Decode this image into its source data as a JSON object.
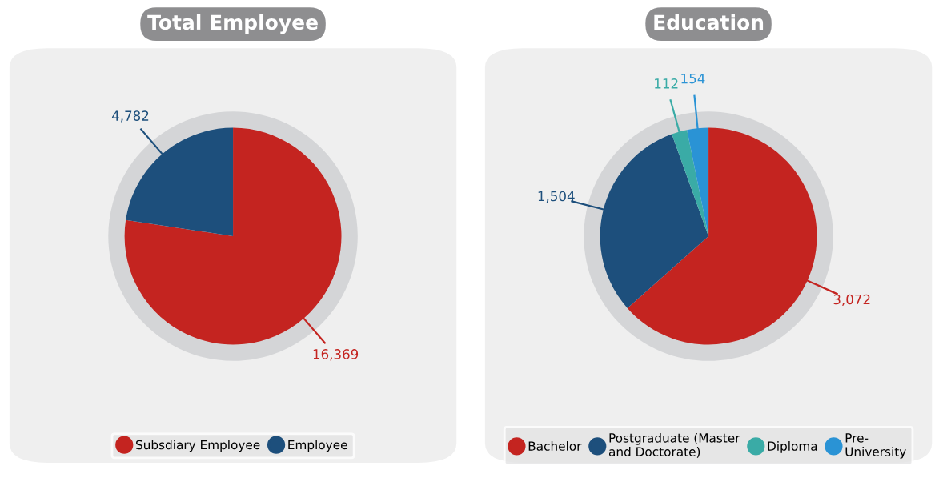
{
  "chart_data": [
    {
      "type": "pie",
      "title": "Total Employee",
      "categories": [
        "Subsdiary Employee",
        "Employee"
      ],
      "values": [
        16369,
        4782
      ],
      "colors": [
        "#c42420",
        "#1d4f7c"
      ],
      "value_labels": [
        "16,369",
        "4,782"
      ],
      "legend": "bottom"
    },
    {
      "type": "pie",
      "title": "Education",
      "categories": [
        "Bachelor",
        "Postgraduate (Master\nand Doctorate)",
        "Diploma",
        "Pre-\nUniversity"
      ],
      "values": [
        3072,
        1504,
        112,
        154
      ],
      "colors": [
        "#c42420",
        "#1d4f7c",
        "#3aaba6",
        "#2a93d5"
      ],
      "value_labels": [
        "3,072",
        "1,504",
        "112",
        "154"
      ],
      "legend": "bottom"
    }
  ]
}
